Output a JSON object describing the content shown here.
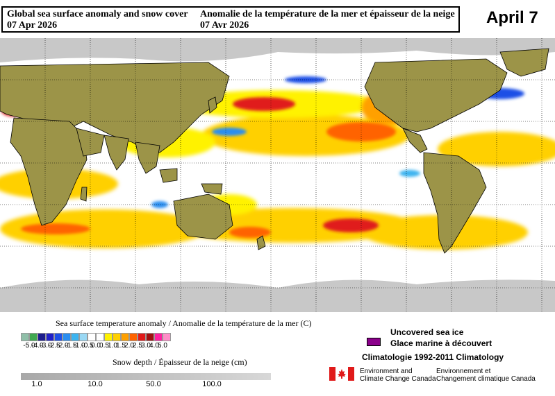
{
  "header": {
    "title_en": "Global sea surface anomaly and snow cover",
    "date_en": "07 Apr 2026",
    "title_fr": "Anomalie de la température de la mer et épaisseur de la neige",
    "date_fr": "07 Avr 2026",
    "big_date": "April 7"
  },
  "sst_legend": {
    "title": "Sea surface temperature anomaly / Anomalie de la température de la mer (C)",
    "ticks": [
      "-5.0",
      "-4.0",
      "-3.0",
      "-2.5",
      "-2.0",
      "-1.5",
      "-1.0",
      "-0.5",
      "0.0",
      "0.5",
      "1.0",
      "1.5",
      "2.0",
      "2.5",
      "3.0",
      "4.0",
      "5.0"
    ],
    "colors": [
      "#8fbfa8",
      "#3fa850",
      "#1c1c8c",
      "#2020c8",
      "#1e50e6",
      "#2a8ef0",
      "#3cb4f0",
      "#9ad8f4",
      "#ffffff",
      "#ffffff",
      "#fff200",
      "#ffd000",
      "#ffa000",
      "#ff6400",
      "#e01a1a",
      "#a01010",
      "#ff20a0",
      "#ff8cc8"
    ]
  },
  "snow_legend": {
    "title": "Snow depth / Épaisseur de la neige (cm)",
    "ticks": [
      "1.0",
      "10.0",
      "50.0",
      "100.0"
    ]
  },
  "sea_ice": {
    "label_en": "Uncovered sea ice",
    "label_fr": "Glace marine à découvert",
    "swatch_color": "#8b008b"
  },
  "climatology": "Climatologie 1992-2011 Climatology",
  "agency": {
    "en_line1": "Environment and",
    "en_line2": "Climate Change Canada",
    "fr_line1": "Environnement et",
    "fr_line2": "Changement climatique Canada"
  },
  "colors": {
    "land": "#9c9448",
    "snow": "#c8c8c8",
    "warm": "#ffd000",
    "hot": "#e01a1a",
    "cold": "#2a8ef0"
  }
}
